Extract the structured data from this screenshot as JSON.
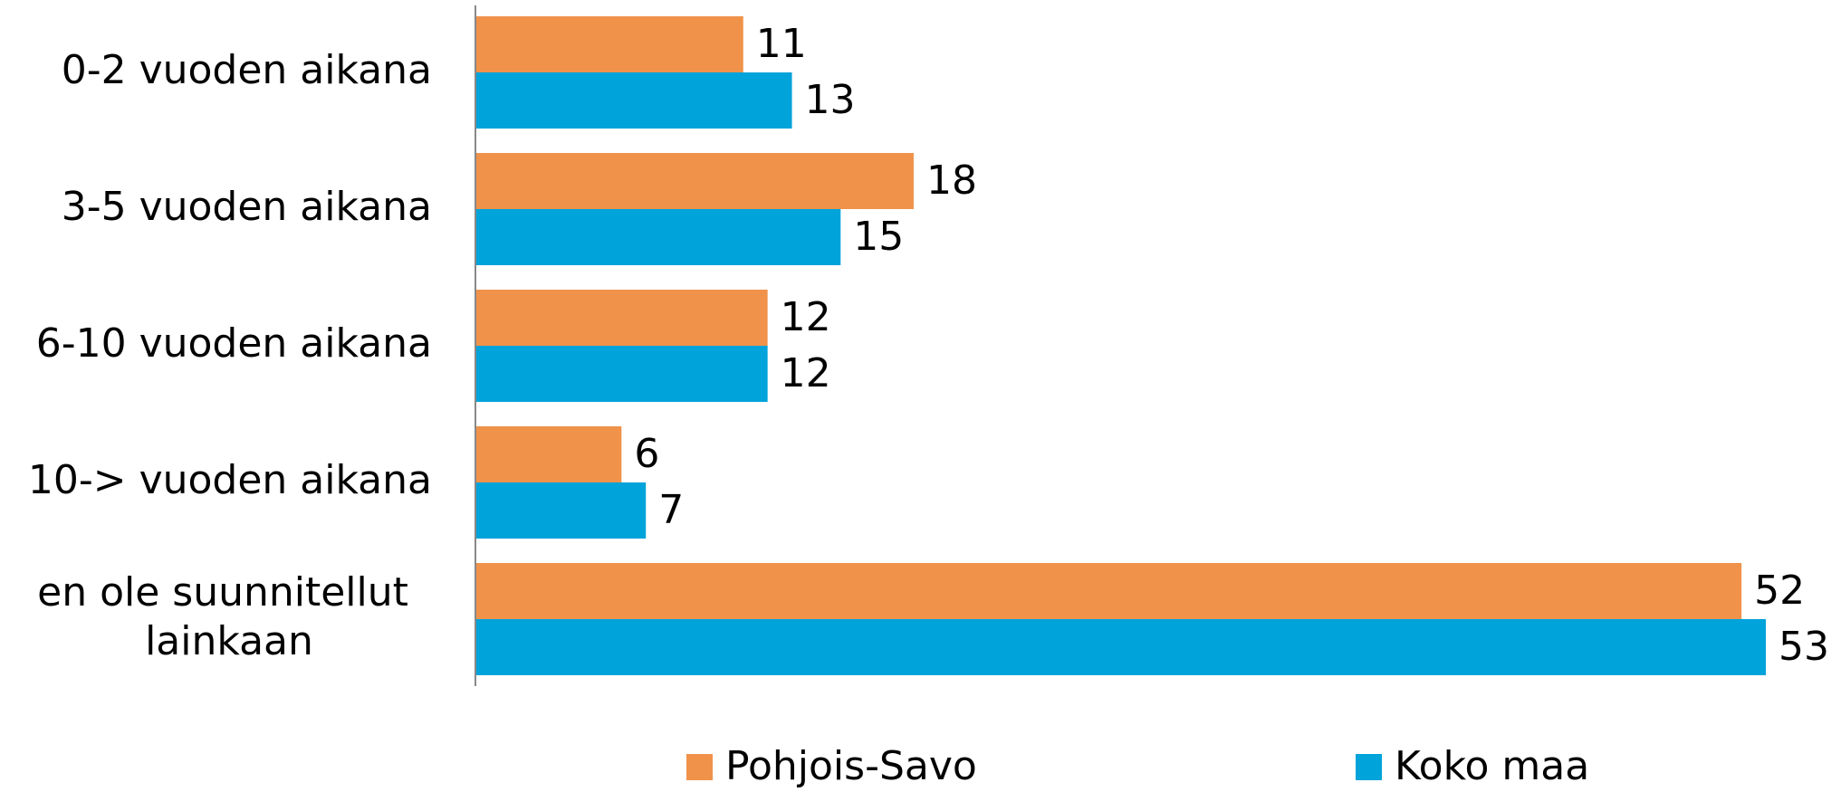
{
  "chart_data": {
    "type": "hbar",
    "categories": [
      "0-2 vuoden aikana",
      "3-5 vuoden aikana",
      "6-10 vuoden aikana",
      "10-> vuoden aikana",
      "en ole suunnitellut lainkaan"
    ],
    "series": [
      {
        "name": "Pohjois-Savo",
        "color": "#f0924a",
        "values": [
          11,
          18,
          12,
          6,
          52
        ]
      },
      {
        "name": "Koko maa",
        "color": "#00a3da",
        "values": [
          13,
          15,
          12,
          7,
          53
        ]
      }
    ],
    "xlim": [
      0,
      53
    ],
    "legend": "bottom"
  }
}
